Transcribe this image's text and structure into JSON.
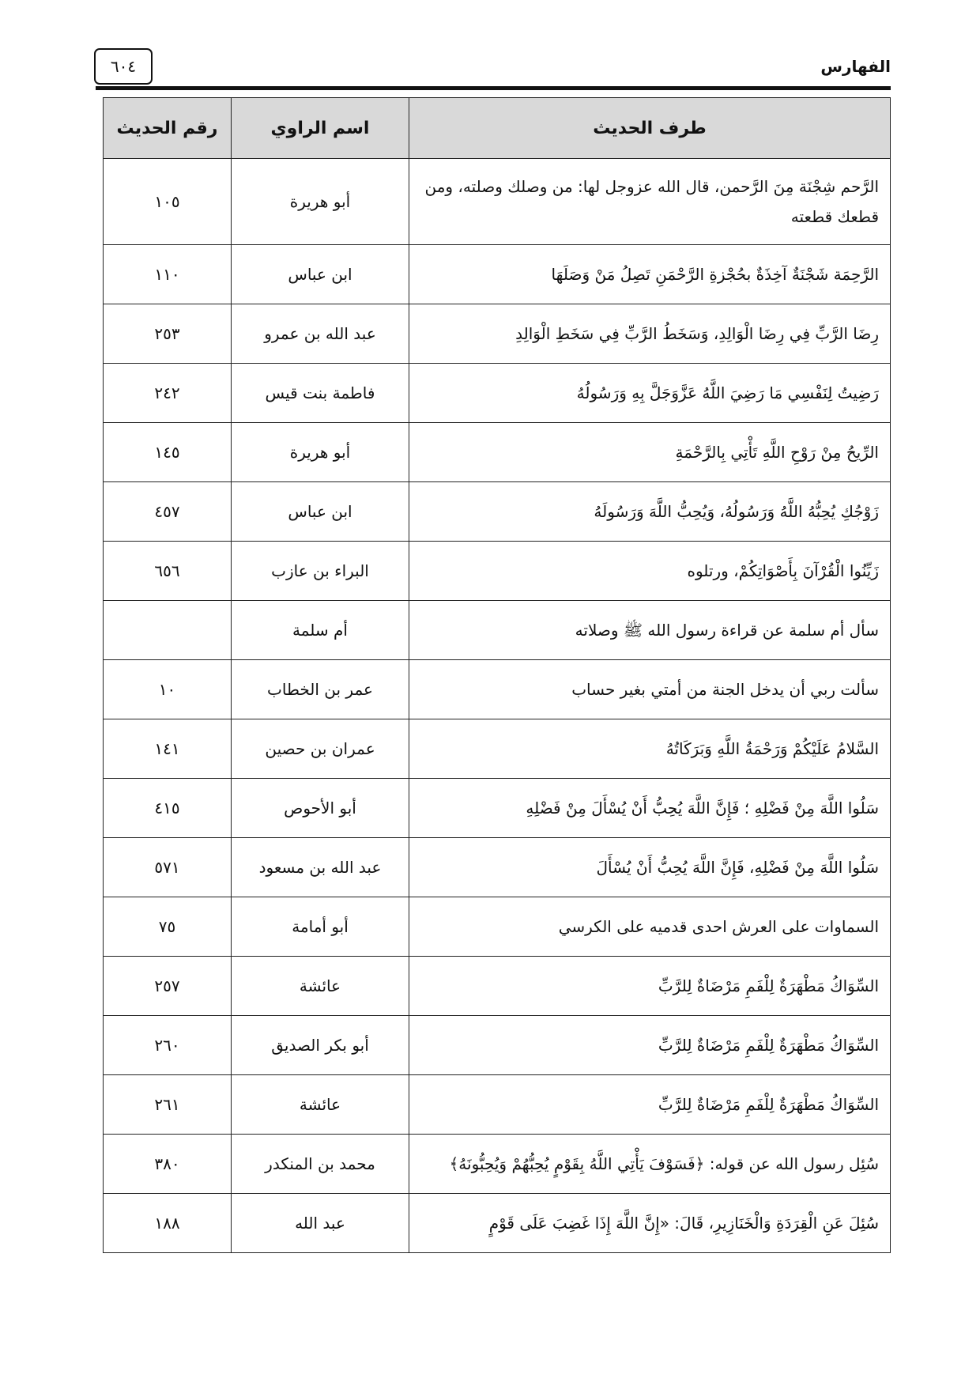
{
  "header": {
    "page_number": "٦٠٤",
    "section_title": "الفهارس"
  },
  "table": {
    "columns": [
      "طرف الحديث",
      "اسم الراوي",
      "رقم الحديث"
    ],
    "rows": [
      {
        "text": "الرَّحم شِجْنَة مِنَ الرَّحمن، قال الله عزوجل لها: من وصلك وصلته، ومن قطعك قطعته",
        "narrator": "أبو هريرة",
        "number": "١٠٥"
      },
      {
        "text": "الرَّحِمَة شَجْنَةٌ آخِذَةٌ بحُجْزةِ الرَّحْمَنِ تَصِلُ مَنْ وَصَلَهَا",
        "narrator": "ابن عباس",
        "number": "١١٠"
      },
      {
        "text": "رِضَا الرَّبِّ فِي رِضَا الْوَالِدِ، وَسَخَطُ الرَّبِّ فِي سَخَطِ الْوَالِدِ",
        "narrator": "عبد الله بن عمرو",
        "number": "٢٥٣"
      },
      {
        "text": "رَضِيتُ لِنَفْسِي مَا رَضِيَ اللَّهُ عَزَّوَجَلَّ بِهِ وَرَسُولُهُ",
        "narrator": "فاطمة بنت قيس",
        "number": "٢٤٢"
      },
      {
        "text": "الرِّيحُ مِنْ رَوْحِ اللَّهِ تَأْتِي بِالرَّحْمَةِ",
        "narrator": "أبو هريرة",
        "number": "١٤٥"
      },
      {
        "text": "زَوْجُكِ يُحِبُّهُ اللَّهُ وَرَسُولُهُ، وَيُحِبُّ اللَّهَ وَرَسُولَهُ",
        "narrator": "ابن عباس",
        "number": "٤٥٧"
      },
      {
        "text": "زَيِّنُوا الْقُرْآنَ بِأَصْوَاتِكُمْ، ورتلوه",
        "narrator": "البراء بن عازب",
        "number": "٦٥٦"
      },
      {
        "text": "سأل أم سلمة عن قراءة رسول الله ﷺ وصلاته",
        "narrator": "أم سلمة",
        "number": ""
      },
      {
        "text": "سألت ربي أن يدخل الجنة من أمتي بغير حساب",
        "narrator": "عمر بن الخطاب",
        "number": "١٠"
      },
      {
        "text": "السَّلامُ عَلَيْكُمْ وَرَحْمَةُ اللَّهِ وَبَرَكَاتُهُ",
        "narrator": "عمران بن حصين",
        "number": "١٤١"
      },
      {
        "text": "سَلُوا اللَّهَ مِنْ فَضْلِهِ ؛ فَإِنَّ اللَّهَ يُحِبُّ أَنْ يُسْأَلَ مِنْ فَضْلِهِ",
        "narrator": "أبو الأحوص",
        "number": "٤١٥"
      },
      {
        "text": "سَلُوا اللَّهَ مِنْ فَضْلِهِ، فَإِنَّ اللَّهَ يُحِبُّ أَنْ يُسْأَلَ",
        "narrator": "عبد الله بن مسعود",
        "number": "٥٧١"
      },
      {
        "text": "السماوات على العرش احدى قدميه على الكرسي",
        "narrator": "أبو أمامة",
        "number": "٧٥"
      },
      {
        "text": "السِّوَاكُ مَطْهَرَةٌ لِلْفَمِ مَرْضَاةٌ لِلرَّبِّ",
        "narrator": "عائشة",
        "number": "٢٥٧"
      },
      {
        "text": "السِّوَاكُ مَطْهَرَةٌ لِلْفَمِ مَرْضَاةٌ لِلرَّبِّ",
        "narrator": "أبو بكر الصديق",
        "number": "٢٦٠"
      },
      {
        "text": "السِّوَاكُ مَطْهَرَةٌ لِلْفَمِ مَرْضَاةٌ لِلرَّبِّ",
        "narrator": "عائشة",
        "number": "٢٦١"
      },
      {
        "text": "سُئِل رسول الله عن قوله: ﴿فَسَوْفَ يَأْتِي اللَّهُ بِقَوْمٍ يُحِبُّهُمْ وَيُحِبُّونَهُ﴾",
        "narrator": "محمد بن المنكدر",
        "number": "٣٨٠"
      },
      {
        "text": "سُئِلَ عَنِ الْقِرَدَةِ وَالْخَنَازِيرِ، قَالَ: «إِنَّ اللَّهَ إِذَا غَضِبَ عَلَى قَوْمٍ",
        "narrator": "عبد الله",
        "number": "١٨٨"
      }
    ]
  }
}
